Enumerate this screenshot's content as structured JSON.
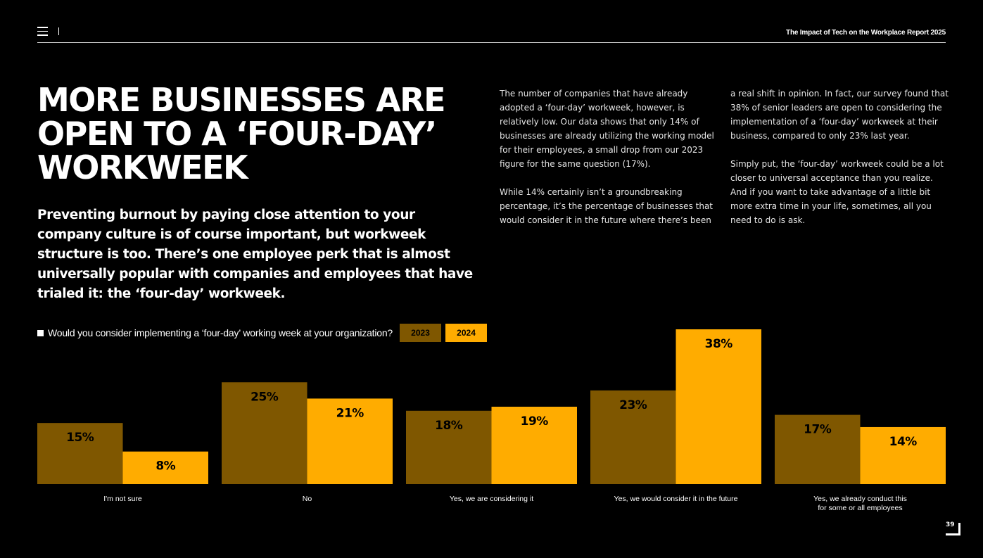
{
  "header": {
    "report_title": "The Impact of Tech on the Workplace Report 2025",
    "menu_icon": "hamburger-menu-icon"
  },
  "headline": "MORE BUSINESSES ARE OPEN TO A ‘FOUR-DAY’ WORKWEEK",
  "subhead": "Preventing burnout by paying close attention to your company culture is of course important, but workweek structure is too. There’s one employee perk that is almost universally popular with companies and employees that have trialed it: the ‘four-day’ workweek.",
  "body": {
    "col1_p1": "The number of companies that have already adopted a ‘four-day’ workweek, however, is relatively low. Our data shows that only 14% of businesses are already utilizing the working model for their employees, a small drop from our 2023 figure for the same question (17%).",
    "col1_p2": "While 14% certainly isn’t a groundbreaking percentage, it’s the percentage of businesses that would consider it in the future where there’s been",
    "col2_p1": "a real shift in opinion. In fact, our survey found that 38% of senior leaders are open to considering the implementation of a ‘four-day’ workweek at their business, compared to only 23% last year.",
    "col2_p2": "Simply put, the ‘four-day’ workweek could be a lot closer to universal acceptance than you realize. And if you want to take advantage of a little bit more extra time in your life, sometimes, all you need to do is ask."
  },
  "chart_data": {
    "type": "bar",
    "title": "Would you consider implementing a ‘four-day’ working week at your organization?",
    "categories": [
      "I'm not sure",
      "No",
      "Yes, we are considering it",
      "Yes, we would consider it in the future",
      [
        "Yes, we already conduct this",
        "for some or all employees"
      ]
    ],
    "series": [
      {
        "name": "2023",
        "values": [
          15,
          25,
          18,
          23,
          17
        ],
        "labels": [
          "15%",
          "25%",
          "18%",
          "23%",
          "17%"
        ],
        "color": "#7f5700"
      },
      {
        "name": "2024",
        "values": [
          8,
          21,
          19,
          38,
          14
        ],
        "labels": [
          "8%",
          "21%",
          "19%",
          "38%",
          "14%"
        ],
        "color": "#ffac00"
      }
    ],
    "ylim": [
      0,
      38
    ],
    "legend_placement": "top-left",
    "grid": false
  },
  "page_number": "39"
}
